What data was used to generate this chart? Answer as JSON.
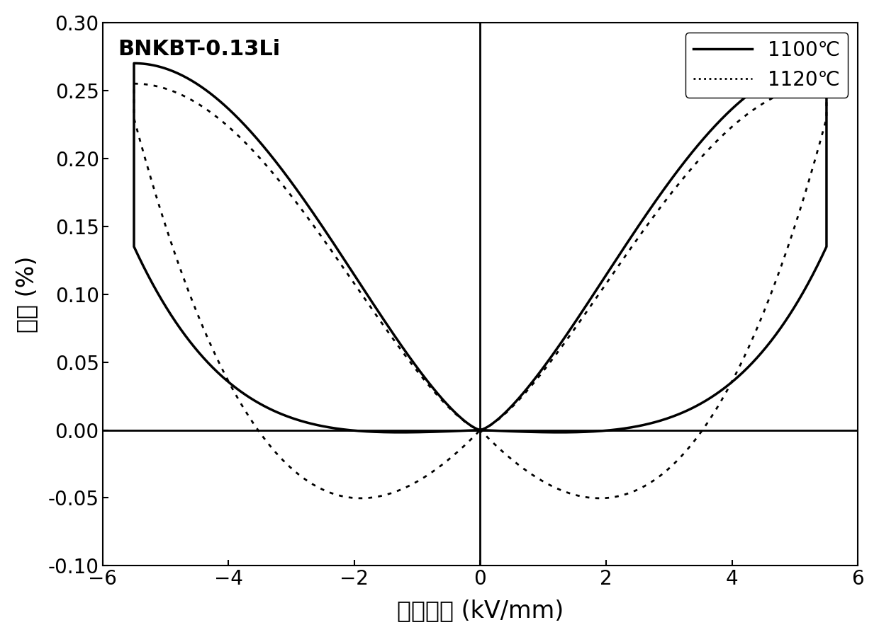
{
  "title_text": "BNKBT-0.13Li",
  "xlabel": "电场强度 (kV/mm)",
  "ylabel": "应变 (%)",
  "xlim": [
    -6,
    6
  ],
  "ylim": [
    -0.1,
    0.3
  ],
  "xticks": [
    -6,
    -4,
    -2,
    0,
    2,
    4,
    6
  ],
  "yticks": [
    -0.1,
    -0.05,
    0.0,
    0.05,
    0.1,
    0.15,
    0.2,
    0.25,
    0.3
  ],
  "legend_solid": "1100℃",
  "legend_dotted": "1120℃",
  "line_color": "#000000",
  "background_color": "#ffffff",
  "vline_x": 0,
  "hline_y": 0,
  "solid_max_strain": 0.27,
  "dotted_max_strain": 0.255,
  "solid_neg_strain": -0.003,
  "dotted_neg_strain": -0.055
}
